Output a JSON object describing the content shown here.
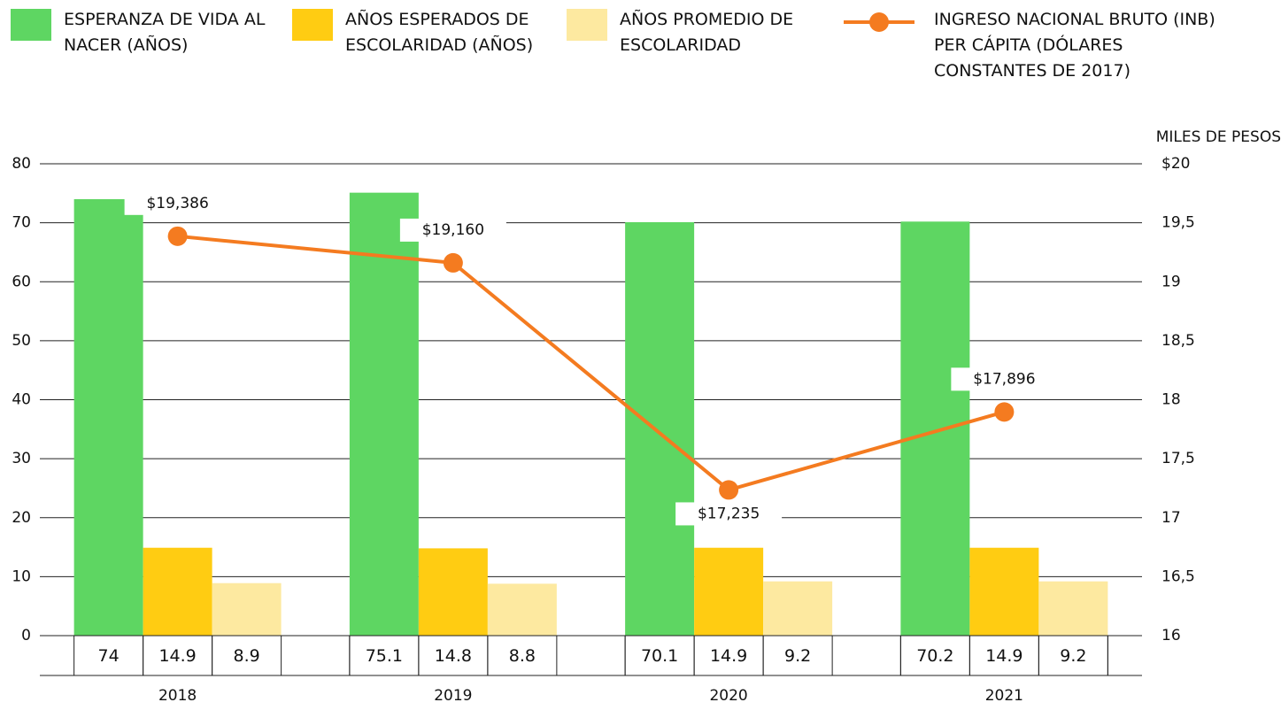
{
  "chart_data": {
    "type": "bar",
    "categories": [
      "2018",
      "2019",
      "2020",
      "2021"
    ],
    "series": [
      {
        "name": "ESPERANZA DE VIDA AL NACER (AÑOS)",
        "color": "#5ed662",
        "values": [
          74,
          75.1,
          70.1,
          70.2
        ]
      },
      {
        "name": "AÑOS ESPERADOS DE ESCOLARIDAD (AÑOS)",
        "color": "#ffcc12",
        "values": [
          14.9,
          14.8,
          14.9,
          14.9
        ]
      },
      {
        "name": "AÑOS PROMEDIO DE ESCOLARIDAD",
        "color": "#fde9a0",
        "values": [
          8.9,
          8.8,
          9.2,
          9.2
        ]
      },
      {
        "name": "INGRESO NACIONAL BRUTO (INB) PER CÁPITA (DÓLARES CONSTANTES DE 2017)",
        "color": "#f47b20",
        "type": "line",
        "axis": "y2",
        "values": [
          19.386,
          19.16,
          17.235,
          17.896
        ],
        "value_labels": [
          "$19,386",
          "$19,160",
          "$17,235",
          "$17,896"
        ]
      }
    ],
    "y2_label": "MILES DE PESOS",
    "ylim": [
      0,
      80
    ],
    "yticks": [
      0,
      10,
      20,
      30,
      40,
      50,
      60,
      70,
      80
    ],
    "y2lim": [
      16,
      20
    ],
    "y2ticks": [
      16,
      {
        "value": 16.5,
        "label": "16,5"
      },
      17,
      {
        "value": 17.5,
        "label": "17,5"
      },
      18,
      {
        "value": 18.5,
        "label": "18,5"
      },
      19,
      {
        "value": 19.5,
        "label": "19,5"
      },
      {
        "value": 20,
        "label": "$20"
      }
    ],
    "grid": true,
    "legend": "top"
  }
}
